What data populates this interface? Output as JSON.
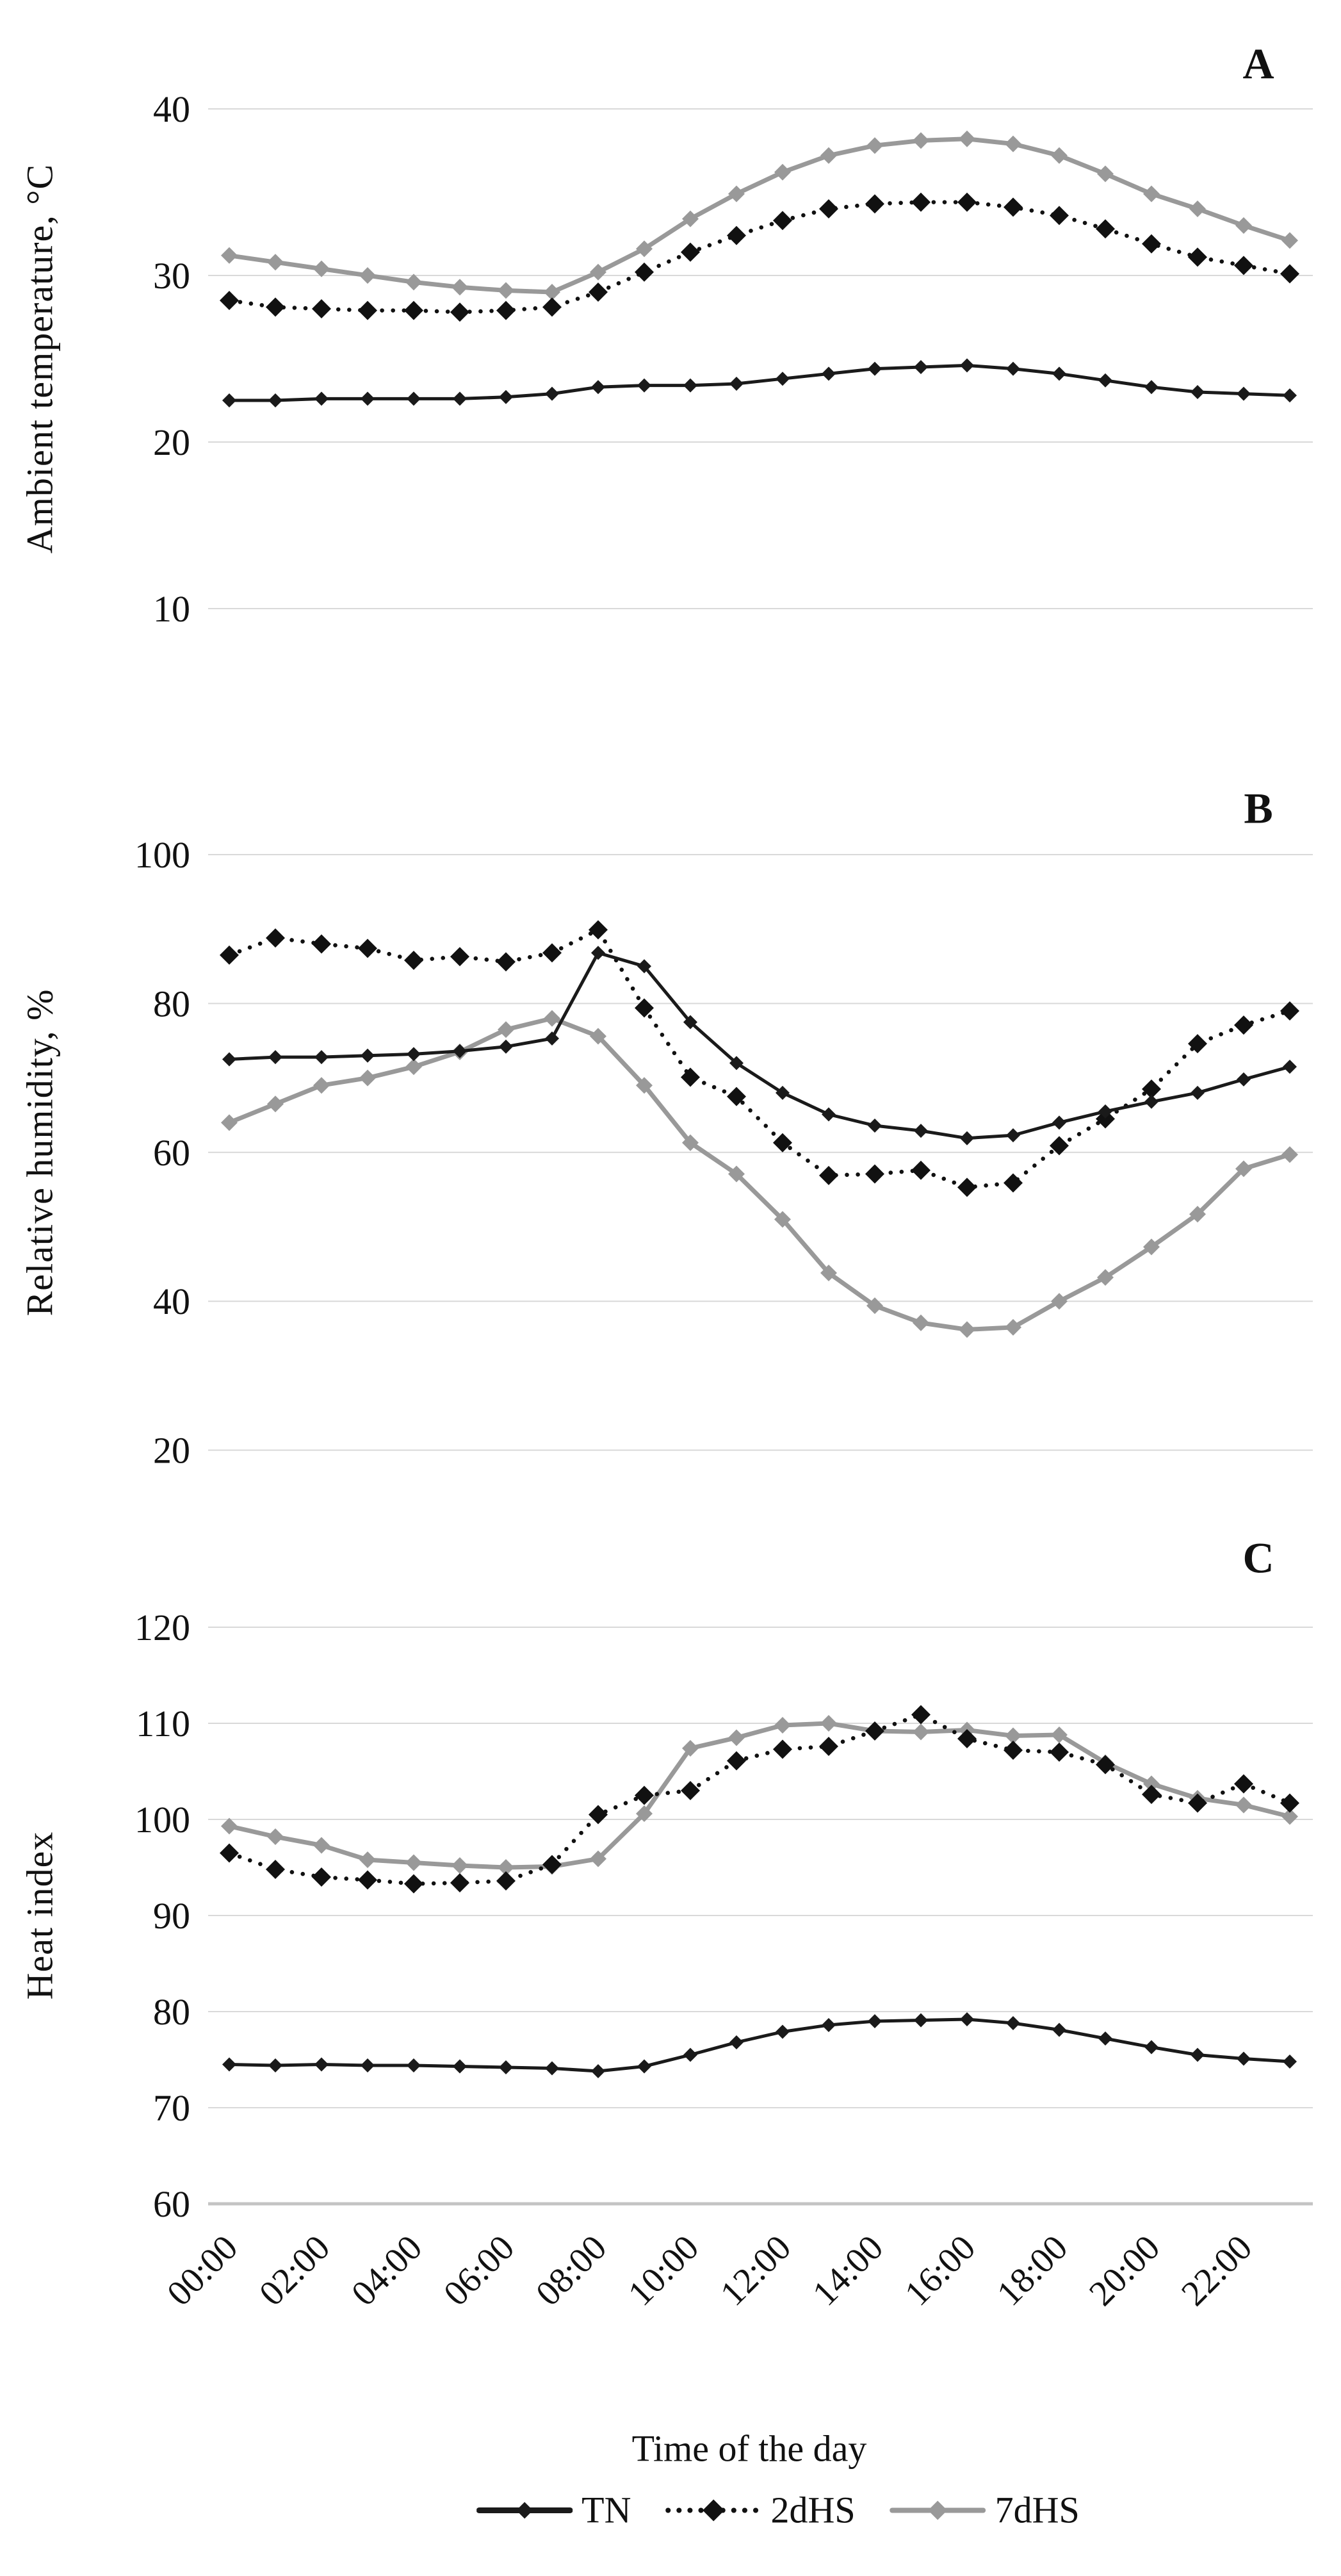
{
  "figure": {
    "x_axis_title": "Time of the day",
    "x_tick_hours": [
      0,
      2,
      4,
      6,
      8,
      10,
      12,
      14,
      16,
      18,
      20,
      22
    ],
    "x_tick_labels": [
      "00:00",
      "02:00",
      "04:00",
      "06:00",
      "08:00",
      "10:00",
      "12:00",
      "14:00",
      "16:00",
      "18:00",
      "20:00",
      "22:00"
    ],
    "colors": {
      "tn": "#1a1a1a",
      "dhs2": "#111111",
      "dhs7": "#999999",
      "gridline": "#d9d9d9",
      "axisline": "#c4c4c4",
      "text": "#111111"
    }
  },
  "legend": {
    "items": [
      {
        "label": "TN",
        "color": "#1a1a1a",
        "line": "solid",
        "marker": "diamond"
      },
      {
        "label": "2dHS",
        "color": "#111111",
        "line": "dotted",
        "marker": "diamond"
      },
      {
        "label": "7dHS",
        "color": "#999999",
        "line": "solid",
        "marker": "diamond"
      }
    ]
  },
  "chart_data": [
    {
      "type": "line",
      "panel_letter": "A",
      "ylabel": "Ambient temperature, °C",
      "ylim": [
        10,
        40
      ],
      "yticks": [
        40,
        30,
        20,
        10
      ],
      "grid": true,
      "legend_position": "shared-bottom",
      "categories": [
        "00:00",
        "01:00",
        "02:00",
        "03:00",
        "04:00",
        "05:00",
        "06:00",
        "07:00",
        "08:00",
        "09:00",
        "10:00",
        "11:00",
        "12:00",
        "13:00",
        "14:00",
        "15:00",
        "16:00",
        "17:00",
        "18:00",
        "19:00",
        "20:00",
        "21:00",
        "22:00",
        "23:00"
      ],
      "series": [
        {
          "name": "TN",
          "values": [
            22.5,
            22.5,
            22.6,
            22.6,
            22.6,
            22.6,
            22.7,
            22.9,
            23.3,
            23.4,
            23.4,
            23.5,
            23.8,
            24.1,
            24.4,
            24.5,
            24.6,
            24.4,
            24.1,
            23.7,
            23.3,
            23.0,
            22.9,
            22.8
          ]
        },
        {
          "name": "2dHS",
          "values": [
            28.5,
            28.1,
            28.0,
            27.9,
            27.9,
            27.8,
            27.9,
            28.1,
            29.0,
            30.2,
            31.4,
            32.4,
            33.3,
            34.0,
            34.3,
            34.4,
            34.4,
            34.1,
            33.6,
            32.8,
            31.9,
            31.1,
            30.6,
            30.1
          ]
        },
        {
          "name": "7dHS",
          "values": [
            31.2,
            30.8,
            30.4,
            30.0,
            29.6,
            29.3,
            29.1,
            29.0,
            30.2,
            31.6,
            33.4,
            34.9,
            36.2,
            37.2,
            37.8,
            38.1,
            38.2,
            37.9,
            37.2,
            36.1,
            34.9,
            34.0,
            33.0,
            32.1
          ]
        }
      ]
    },
    {
      "type": "line",
      "panel_letter": "B",
      "ylabel": "Relative humidity, %",
      "ylim": [
        20,
        100
      ],
      "yticks": [
        100,
        80,
        60,
        40,
        20
      ],
      "grid": true,
      "legend_position": "shared-bottom",
      "categories": [
        "00:00",
        "01:00",
        "02:00",
        "03:00",
        "04:00",
        "05:00",
        "06:00",
        "07:00",
        "08:00",
        "09:00",
        "10:00",
        "11:00",
        "12:00",
        "13:00",
        "14:00",
        "15:00",
        "16:00",
        "17:00",
        "18:00",
        "19:00",
        "20:00",
        "21:00",
        "22:00",
        "23:00"
      ],
      "series": [
        {
          "name": "TN",
          "values": [
            72.5,
            72.8,
            72.8,
            73.0,
            73.2,
            73.6,
            74.2,
            75.3,
            86.8,
            85.0,
            77.5,
            72.0,
            68.0,
            65.1,
            63.6,
            62.9,
            61.9,
            62.3,
            64.0,
            65.5,
            66.8,
            68.0,
            69.8,
            71.5
          ]
        },
        {
          "name": "2dHS",
          "values": [
            86.5,
            88.8,
            88.0,
            87.4,
            85.8,
            86.3,
            85.6,
            86.8,
            89.9,
            79.4,
            70.1,
            67.5,
            61.3,
            56.9,
            57.1,
            57.6,
            55.3,
            55.9,
            60.9,
            64.5,
            68.5,
            74.6,
            77.1,
            79.0
          ]
        },
        {
          "name": "7dHS",
          "values": [
            64.0,
            66.5,
            69.0,
            70.0,
            71.5,
            73.5,
            76.5,
            78.0,
            75.6,
            69.0,
            61.3,
            57.1,
            51.0,
            43.8,
            39.4,
            37.1,
            36.2,
            36.5,
            40.0,
            43.2,
            47.3,
            51.7,
            57.8,
            59.7
          ]
        }
      ]
    },
    {
      "type": "line",
      "panel_letter": "C",
      "ylabel": "Heat index",
      "ylim": [
        60,
        120
      ],
      "yticks": [
        120,
        110,
        100,
        90,
        80,
        70,
        60
      ],
      "grid": true,
      "legend_position": "shared-bottom",
      "categories": [
        "00:00",
        "01:00",
        "02:00",
        "03:00",
        "04:00",
        "05:00",
        "06:00",
        "07:00",
        "08:00",
        "09:00",
        "10:00",
        "11:00",
        "12:00",
        "13:00",
        "14:00",
        "15:00",
        "16:00",
        "17:00",
        "18:00",
        "19:00",
        "20:00",
        "21:00",
        "22:00",
        "23:00"
      ],
      "series": [
        {
          "name": "TN",
          "values": [
            74.5,
            74.4,
            74.5,
            74.4,
            74.4,
            74.3,
            74.2,
            74.1,
            73.8,
            74.3,
            75.5,
            76.8,
            77.9,
            78.6,
            79.0,
            79.1,
            79.2,
            78.8,
            78.1,
            77.2,
            76.3,
            75.5,
            75.1,
            74.8
          ]
        },
        {
          "name": "2dHS",
          "values": [
            96.5,
            94.8,
            94.0,
            93.7,
            93.3,
            93.4,
            93.6,
            95.3,
            100.5,
            102.5,
            103.0,
            106.1,
            107.3,
            107.6,
            109.2,
            110.9,
            108.4,
            107.2,
            107.0,
            105.7,
            102.6,
            101.7,
            103.7,
            101.7
          ]
        },
        {
          "name": "7dHS",
          "values": [
            99.3,
            98.2,
            97.3,
            95.8,
            95.5,
            95.2,
            95.0,
            95.1,
            95.9,
            100.6,
            107.4,
            108.5,
            109.8,
            110.0,
            109.2,
            109.1,
            109.3,
            108.7,
            108.8,
            105.9,
            103.7,
            102.2,
            101.5,
            100.3
          ]
        }
      ]
    }
  ]
}
